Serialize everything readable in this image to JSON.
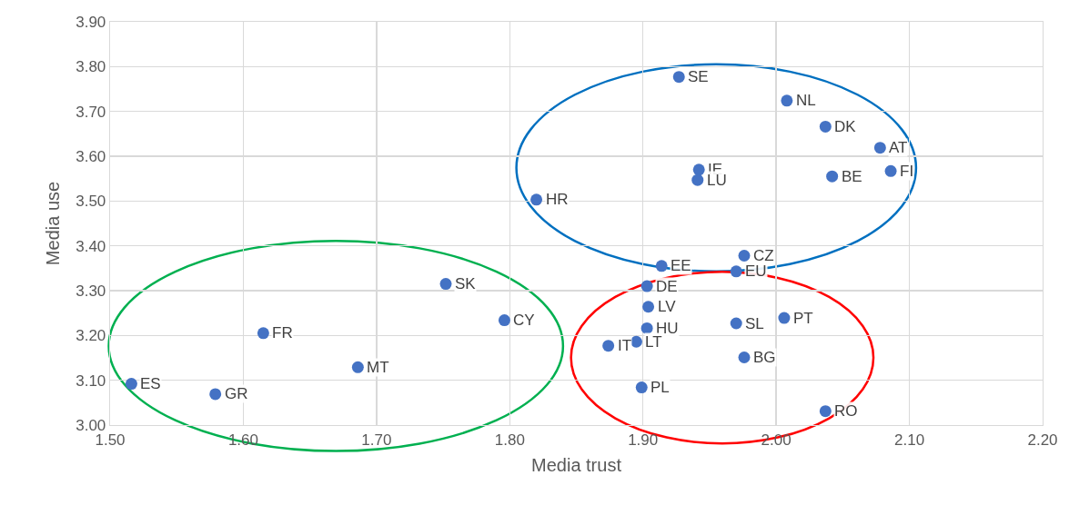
{
  "chart_data": {
    "type": "scatter",
    "xlabel": "Media trust",
    "ylabel": "Media use",
    "x": [
      1.927,
      2.008,
      2.037,
      2.078,
      2.086,
      2.042,
      1.942,
      1.941,
      1.82,
      1.976,
      1.914,
      1.97,
      1.903,
      1.904,
      1.903,
      1.97,
      2.006,
      1.874,
      1.895,
      1.976,
      1.899,
      2.037,
      1.752,
      1.796,
      1.615,
      1.686,
      1.516,
      1.579
    ],
    "values": [
      3.777,
      3.724,
      3.666,
      3.619,
      3.567,
      3.555,
      3.57,
      3.547,
      3.503,
      3.378,
      3.355,
      3.343,
      3.31,
      3.264,
      3.216,
      3.227,
      3.239,
      3.177,
      3.186,
      3.151,
      3.084,
      3.031,
      3.315,
      3.234,
      3.205,
      3.129,
      3.092,
      3.069
    ],
    "value_labels": [
      "SE",
      "NL",
      "DK",
      "AT",
      "FI",
      "BE",
      "IE",
      "LU",
      "HR",
      "CZ",
      "EE",
      "EU",
      "DE",
      "LV",
      "HU",
      "SL",
      "PT",
      "IT",
      "LT",
      "BG",
      "PL",
      "RO",
      "SK",
      "CY",
      "FR",
      "MT",
      "ES",
      "GR"
    ],
    "color": "#4472c4",
    "marker": "circle",
    "xlim": [
      1.5,
      2.2
    ],
    "xticks": [
      {
        "value": 1.5,
        "label": "1.50"
      },
      {
        "value": 1.6,
        "label": "1.60"
      },
      {
        "value": 1.7,
        "label": "1.70"
      },
      {
        "value": 1.8,
        "label": "1.80"
      },
      {
        "value": 1.9,
        "label": "1.90"
      },
      {
        "value": 2.0,
        "label": "2.00"
      },
      {
        "value": 2.1,
        "label": "2.10"
      },
      {
        "value": 2.2,
        "label": "2.20"
      }
    ],
    "ylim": [
      3.0,
      3.9
    ],
    "yticks": [
      {
        "value": 3.0,
        "label": "3.00"
      },
      {
        "value": 3.1,
        "label": "3.10"
      },
      {
        "value": 3.2,
        "label": "3.20"
      },
      {
        "value": 3.3,
        "label": "3.30"
      },
      {
        "value": 3.4,
        "label": "3.40"
      },
      {
        "value": 3.5,
        "label": "3.50"
      },
      {
        "value": 3.6,
        "label": "3.60"
      },
      {
        "value": 3.7,
        "label": "3.70"
      },
      {
        "value": 3.8,
        "label": "3.80"
      },
      {
        "value": 3.9,
        "label": "3.90"
      }
    ],
    "grid": true
  }
}
